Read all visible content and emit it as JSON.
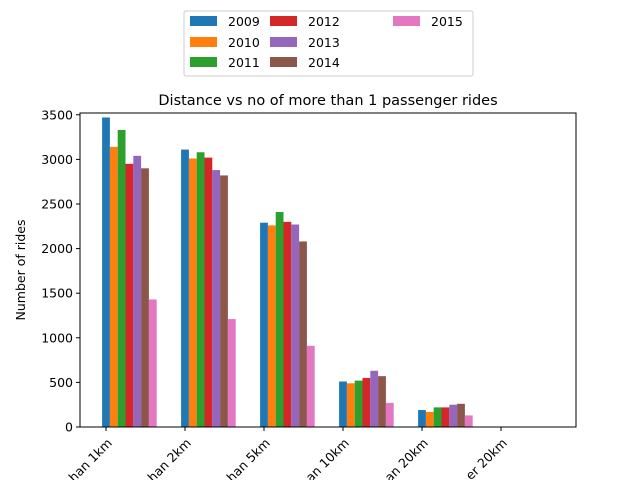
{
  "chart_data": {
    "type": "bar",
    "title": "Distance vs no of more than 1 passenger rides",
    "xlabel": "",
    "ylabel": "Number of rides",
    "categories": [
      "...han 1km",
      "...han 2km",
      "...han 5km",
      "...an 10km",
      "...an 20km",
      "...er 20km"
    ],
    "ylim": [
      0,
      3500
    ],
    "yticks": [
      0,
      500,
      1000,
      1500,
      2000,
      2500,
      3000,
      3500
    ],
    "grid": false,
    "legend_position": "top-center",
    "series": [
      {
        "name": "2009",
        "color": "#1f77b4",
        "values": [
          3470,
          3110,
          2290,
          510,
          190,
          0
        ]
      },
      {
        "name": "2010",
        "color": "#ff7f0e",
        "values": [
          3140,
          3010,
          2260,
          490,
          170,
          0
        ]
      },
      {
        "name": "2011",
        "color": "#2ca02c",
        "values": [
          3330,
          3080,
          2410,
          520,
          220,
          0
        ]
      },
      {
        "name": "2012",
        "color": "#d62728",
        "values": [
          2950,
          3020,
          2300,
          550,
          220,
          0
        ]
      },
      {
        "name": "2013",
        "color": "#9467bd",
        "values": [
          3040,
          2880,
          2270,
          630,
          250,
          0
        ]
      },
      {
        "name": "2014",
        "color": "#8c564b",
        "values": [
          2900,
          2820,
          2080,
          570,
          260,
          0
        ]
      },
      {
        "name": "2015",
        "color": "#e377c2",
        "values": [
          1430,
          1210,
          910,
          270,
          130,
          0
        ]
      }
    ]
  }
}
